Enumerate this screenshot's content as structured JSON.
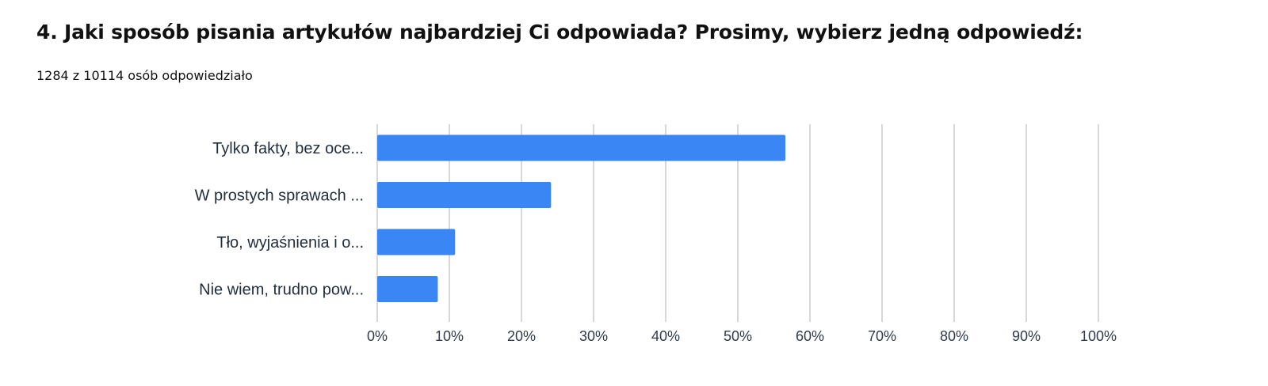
{
  "question": {
    "title": "4. Jaki sposób pisania artykułów najbardziej Ci odpowiada? Prosimy, wybierz jedną odpowiedź:",
    "responses": "1284 z 10114 osób odpowiedziało"
  },
  "chart_data": {
    "type": "bar",
    "orientation": "horizontal",
    "categories": [
      "Tylko fakty, bez oce...",
      "W prostych sprawach ...",
      "Tło, wyjaśnienia i o...",
      "Nie wiem, trudno pow..."
    ],
    "values": [
      56.6,
      24.1,
      10.8,
      8.4
    ],
    "xlim": [
      0,
      100
    ],
    "xticks": [
      "0%",
      "10%",
      "20%",
      "30%",
      "40%",
      "50%",
      "60%",
      "70%",
      "80%",
      "90%",
      "100%"
    ],
    "grid": true,
    "bar_color": "#3a86f5",
    "grid_color": "#cccccc"
  }
}
